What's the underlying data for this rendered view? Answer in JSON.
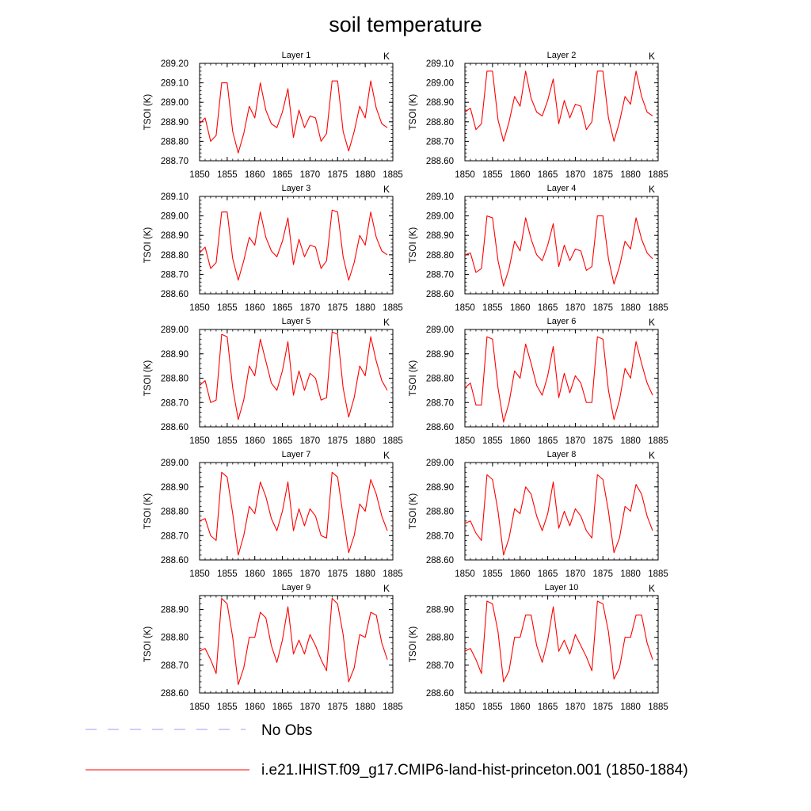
{
  "title": "soil temperature",
  "legend": [
    {
      "label": "No Obs",
      "style": "dashed",
      "color": "#9b9bff"
    },
    {
      "label": "i.e21.IHIST.f09_g17.CMIP6-land-hist-princeton.001 (1850-1884)",
      "style": "solid",
      "color": "#ff0000"
    }
  ],
  "chart_data": [
    {
      "type": "line",
      "title": "Layer 1",
      "units_label": "K",
      "ylabel": "TSOI  (K)",
      "x": [
        1850,
        1851,
        1852,
        1853,
        1854,
        1855,
        1856,
        1857,
        1858,
        1859,
        1860,
        1861,
        1862,
        1863,
        1864,
        1865,
        1866,
        1867,
        1868,
        1869,
        1870,
        1871,
        1872,
        1873,
        1874,
        1875,
        1876,
        1877,
        1878,
        1879,
        1880,
        1881,
        1882,
        1883,
        1884
      ],
      "xlim": [
        1850,
        1885
      ],
      "xticks": [
        1850,
        1855,
        1860,
        1865,
        1870,
        1875,
        1880,
        1885
      ],
      "ylim": [
        288.7,
        289.2
      ],
      "yticks": [
        "288.70",
        "288.80",
        "288.90",
        "289.00",
        "289.10",
        "289.20"
      ],
      "color": "#ff0000",
      "values": [
        288.89,
        288.92,
        288.8,
        288.83,
        289.1,
        289.1,
        288.85,
        288.74,
        288.84,
        288.98,
        288.92,
        289.1,
        288.96,
        288.89,
        288.87,
        288.95,
        289.07,
        288.82,
        288.96,
        288.87,
        288.93,
        288.92,
        288.8,
        288.84,
        289.11,
        289.11,
        288.85,
        288.75,
        288.85,
        288.98,
        288.92,
        289.11,
        288.97,
        288.89,
        288.87
      ]
    },
    {
      "type": "line",
      "title": "Layer 2",
      "units_label": "K",
      "ylabel": "TSOI  (K)",
      "x": [
        1850,
        1851,
        1852,
        1853,
        1854,
        1855,
        1856,
        1857,
        1858,
        1859,
        1860,
        1861,
        1862,
        1863,
        1864,
        1865,
        1866,
        1867,
        1868,
        1869,
        1870,
        1871,
        1872,
        1873,
        1874,
        1875,
        1876,
        1877,
        1878,
        1879,
        1880,
        1881,
        1882,
        1883,
        1884
      ],
      "xlim": [
        1850,
        1885
      ],
      "xticks": [
        1850,
        1855,
        1860,
        1865,
        1870,
        1875,
        1880,
        1885
      ],
      "ylim": [
        288.6,
        289.1
      ],
      "yticks": [
        "288.60",
        "288.70",
        "288.80",
        "288.90",
        "289.00",
        "289.10"
      ],
      "color": "#ff0000",
      "values": [
        288.85,
        288.87,
        288.76,
        288.79,
        289.06,
        289.06,
        288.81,
        288.7,
        288.8,
        288.93,
        288.88,
        289.06,
        288.92,
        288.85,
        288.83,
        288.91,
        289.02,
        288.79,
        288.91,
        288.82,
        288.89,
        288.88,
        288.76,
        288.8,
        289.06,
        289.06,
        288.82,
        288.7,
        288.8,
        288.93,
        288.89,
        289.06,
        288.93,
        288.85,
        288.83
      ]
    },
    {
      "type": "line",
      "title": "Layer 3",
      "units_label": "K",
      "ylabel": "TSOI  (K)",
      "x": [
        1850,
        1851,
        1852,
        1853,
        1854,
        1855,
        1856,
        1857,
        1858,
        1859,
        1860,
        1861,
        1862,
        1863,
        1864,
        1865,
        1866,
        1867,
        1868,
        1869,
        1870,
        1871,
        1872,
        1873,
        1874,
        1875,
        1876,
        1877,
        1878,
        1879,
        1880,
        1881,
        1882,
        1883,
        1884
      ],
      "xlim": [
        1850,
        1885
      ],
      "xticks": [
        1850,
        1855,
        1860,
        1865,
        1870,
        1875,
        1880,
        1885
      ],
      "ylim": [
        288.6,
        289.1
      ],
      "yticks": [
        "288.60",
        "288.70",
        "288.80",
        "288.90",
        "289.00",
        "289.10"
      ],
      "color": "#ff0000",
      "values": [
        288.81,
        288.84,
        288.73,
        288.76,
        289.02,
        289.02,
        288.78,
        288.67,
        288.77,
        288.89,
        288.85,
        289.02,
        288.89,
        288.82,
        288.79,
        288.87,
        288.99,
        288.75,
        288.88,
        288.79,
        288.85,
        288.84,
        288.73,
        288.77,
        289.03,
        289.02,
        288.79,
        288.67,
        288.76,
        288.9,
        288.85,
        289.02,
        288.89,
        288.82,
        288.8
      ]
    },
    {
      "type": "line",
      "title": "Layer 4",
      "units_label": "K",
      "ylabel": "TSOI  (K)",
      "x": [
        1850,
        1851,
        1852,
        1853,
        1854,
        1855,
        1856,
        1857,
        1858,
        1859,
        1860,
        1861,
        1862,
        1863,
        1864,
        1865,
        1866,
        1867,
        1868,
        1869,
        1870,
        1871,
        1872,
        1873,
        1874,
        1875,
        1876,
        1877,
        1878,
        1879,
        1880,
        1881,
        1882,
        1883,
        1884
      ],
      "xlim": [
        1850,
        1885
      ],
      "xticks": [
        1850,
        1855,
        1860,
        1865,
        1870,
        1875,
        1880,
        1885
      ],
      "ylim": [
        288.6,
        289.1
      ],
      "yticks": [
        "288.60",
        "288.70",
        "288.80",
        "288.90",
        "289.00",
        "289.10"
      ],
      "color": "#ff0000",
      "values": [
        288.8,
        288.81,
        288.71,
        288.73,
        289.0,
        288.99,
        288.77,
        288.64,
        288.73,
        288.87,
        288.82,
        288.99,
        288.88,
        288.8,
        288.77,
        288.85,
        288.96,
        288.74,
        288.85,
        288.77,
        288.83,
        288.82,
        288.72,
        288.74,
        289.0,
        289.0,
        288.78,
        288.65,
        288.74,
        288.87,
        288.83,
        288.99,
        288.88,
        288.81,
        288.78
      ]
    },
    {
      "type": "line",
      "title": "Layer 5",
      "units_label": "K",
      "ylabel": "TSOI  (K)",
      "x": [
        1850,
        1851,
        1852,
        1853,
        1854,
        1855,
        1856,
        1857,
        1858,
        1859,
        1860,
        1861,
        1862,
        1863,
        1864,
        1865,
        1866,
        1867,
        1868,
        1869,
        1870,
        1871,
        1872,
        1873,
        1874,
        1875,
        1876,
        1877,
        1878,
        1879,
        1880,
        1881,
        1882,
        1883,
        1884
      ],
      "xlim": [
        1850,
        1885
      ],
      "xticks": [
        1850,
        1855,
        1860,
        1865,
        1870,
        1875,
        1880,
        1885
      ],
      "ylim": [
        288.6,
        289.0
      ],
      "yticks": [
        "288.60",
        "288.70",
        "288.80",
        "288.90",
        "289.00"
      ],
      "color": "#ff0000",
      "values": [
        288.77,
        288.79,
        288.7,
        288.71,
        288.98,
        288.97,
        288.76,
        288.63,
        288.71,
        288.85,
        288.81,
        288.96,
        288.87,
        288.78,
        288.75,
        288.83,
        288.95,
        288.73,
        288.83,
        288.75,
        288.82,
        288.8,
        288.71,
        288.72,
        288.99,
        288.98,
        288.76,
        288.64,
        288.72,
        288.85,
        288.81,
        288.97,
        288.87,
        288.79,
        288.75
      ]
    },
    {
      "type": "line",
      "title": "Layer 6",
      "units_label": "K",
      "ylabel": "TSOI  (K)",
      "x": [
        1850,
        1851,
        1852,
        1853,
        1854,
        1855,
        1856,
        1857,
        1858,
        1859,
        1860,
        1861,
        1862,
        1863,
        1864,
        1865,
        1866,
        1867,
        1868,
        1869,
        1870,
        1871,
        1872,
        1873,
        1874,
        1875,
        1876,
        1877,
        1878,
        1879,
        1880,
        1881,
        1882,
        1883,
        1884
      ],
      "xlim": [
        1850,
        1885
      ],
      "xticks": [
        1850,
        1855,
        1860,
        1865,
        1870,
        1875,
        1880,
        1885
      ],
      "ylim": [
        288.6,
        289.0
      ],
      "yticks": [
        "288.60",
        "288.70",
        "288.80",
        "288.90",
        "289.00"
      ],
      "color": "#ff0000",
      "values": [
        288.76,
        288.78,
        288.69,
        288.69,
        288.97,
        288.96,
        288.76,
        288.62,
        288.7,
        288.83,
        288.8,
        288.94,
        288.86,
        288.77,
        288.73,
        288.81,
        288.93,
        288.72,
        288.82,
        288.74,
        288.81,
        288.78,
        288.7,
        288.7,
        288.97,
        288.96,
        288.75,
        288.63,
        288.71,
        288.84,
        288.8,
        288.95,
        288.86,
        288.78,
        288.73
      ]
    },
    {
      "type": "line",
      "title": "Layer 7",
      "units_label": "K",
      "ylabel": "TSOI  (K)",
      "x": [
        1850,
        1851,
        1852,
        1853,
        1854,
        1855,
        1856,
        1857,
        1858,
        1859,
        1860,
        1861,
        1862,
        1863,
        1864,
        1865,
        1866,
        1867,
        1868,
        1869,
        1870,
        1871,
        1872,
        1873,
        1874,
        1875,
        1876,
        1877,
        1878,
        1879,
        1880,
        1881,
        1882,
        1883,
        1884
      ],
      "xlim": [
        1850,
        1885
      ],
      "xticks": [
        1850,
        1855,
        1860,
        1865,
        1870,
        1875,
        1880,
        1885
      ],
      "ylim": [
        288.6,
        289.0
      ],
      "yticks": [
        "288.60",
        "288.70",
        "288.80",
        "288.90",
        "289.00"
      ],
      "color": "#ff0000",
      "values": [
        288.76,
        288.77,
        288.7,
        288.68,
        288.96,
        288.94,
        288.79,
        288.62,
        288.7,
        288.82,
        288.79,
        288.92,
        288.86,
        288.77,
        288.72,
        288.8,
        288.92,
        288.72,
        288.81,
        288.74,
        288.81,
        288.78,
        288.7,
        288.69,
        288.96,
        288.94,
        288.78,
        288.63,
        288.7,
        288.83,
        288.8,
        288.93,
        288.87,
        288.78,
        288.72
      ]
    },
    {
      "type": "line",
      "title": "Layer 8",
      "units_label": "K",
      "ylabel": "TSOI  (K)",
      "x": [
        1850,
        1851,
        1852,
        1853,
        1854,
        1855,
        1856,
        1857,
        1858,
        1859,
        1860,
        1861,
        1862,
        1863,
        1864,
        1865,
        1866,
        1867,
        1868,
        1869,
        1870,
        1871,
        1872,
        1873,
        1874,
        1875,
        1876,
        1877,
        1878,
        1879,
        1880,
        1881,
        1882,
        1883,
        1884
      ],
      "xlim": [
        1850,
        1885
      ],
      "xticks": [
        1850,
        1855,
        1860,
        1865,
        1870,
        1875,
        1880,
        1885
      ],
      "ylim": [
        288.6,
        289.0
      ],
      "yticks": [
        "288.60",
        "288.70",
        "288.80",
        "288.90",
        "289.00"
      ],
      "color": "#ff0000",
      "values": [
        288.75,
        288.76,
        288.71,
        288.68,
        288.95,
        288.93,
        288.8,
        288.62,
        288.69,
        288.81,
        288.79,
        288.9,
        288.87,
        288.78,
        288.72,
        288.79,
        288.92,
        288.73,
        288.8,
        288.74,
        288.81,
        288.78,
        288.72,
        288.69,
        288.95,
        288.93,
        288.8,
        288.63,
        288.69,
        288.82,
        288.8,
        288.91,
        288.87,
        288.78,
        288.72
      ]
    },
    {
      "type": "line",
      "title": "Layer 9",
      "units_label": "K",
      "ylabel": "TSOI  (K)",
      "x": [
        1850,
        1851,
        1852,
        1853,
        1854,
        1855,
        1856,
        1857,
        1858,
        1859,
        1860,
        1861,
        1862,
        1863,
        1864,
        1865,
        1866,
        1867,
        1868,
        1869,
        1870,
        1871,
        1872,
        1873,
        1874,
        1875,
        1876,
        1877,
        1878,
        1879,
        1880,
        1881,
        1882,
        1883,
        1884
      ],
      "xlim": [
        1850,
        1885
      ],
      "xticks": [
        1850,
        1855,
        1860,
        1865,
        1870,
        1875,
        1880,
        1885
      ],
      "ylim": [
        288.6,
        288.95
      ],
      "yticks": [
        "288.60",
        "288.70",
        "288.80",
        "288.90"
      ],
      "color": "#ff0000",
      "values": [
        288.75,
        288.76,
        288.72,
        288.67,
        288.94,
        288.92,
        288.8,
        288.63,
        288.69,
        288.8,
        288.8,
        288.89,
        288.87,
        288.77,
        288.71,
        288.79,
        288.91,
        288.74,
        288.79,
        288.74,
        288.81,
        288.77,
        288.72,
        288.68,
        288.94,
        288.92,
        288.81,
        288.64,
        288.69,
        288.81,
        288.8,
        288.89,
        288.88,
        288.78,
        288.72
      ]
    },
    {
      "type": "line",
      "title": "Layer 10",
      "units_label": "K",
      "ylabel": "TSOI  (K)",
      "x": [
        1850,
        1851,
        1852,
        1853,
        1854,
        1855,
        1856,
        1857,
        1858,
        1859,
        1860,
        1861,
        1862,
        1863,
        1864,
        1865,
        1866,
        1867,
        1868,
        1869,
        1870,
        1871,
        1872,
        1873,
        1874,
        1875,
        1876,
        1877,
        1878,
        1879,
        1880,
        1881,
        1882,
        1883,
        1884
      ],
      "xlim": [
        1850,
        1885
      ],
      "xticks": [
        1850,
        1855,
        1860,
        1865,
        1870,
        1875,
        1880,
        1885
      ],
      "ylim": [
        288.6,
        288.95
      ],
      "yticks": [
        "288.60",
        "288.70",
        "288.80",
        "288.90"
      ],
      "color": "#ff0000",
      "values": [
        288.75,
        288.76,
        288.72,
        288.67,
        288.93,
        288.92,
        288.82,
        288.64,
        288.68,
        288.8,
        288.8,
        288.88,
        288.88,
        288.77,
        288.71,
        288.79,
        288.91,
        288.75,
        288.79,
        288.74,
        288.81,
        288.77,
        288.73,
        288.68,
        288.93,
        288.92,
        288.82,
        288.65,
        288.69,
        288.8,
        288.8,
        288.88,
        288.88,
        288.78,
        288.72
      ]
    }
  ]
}
